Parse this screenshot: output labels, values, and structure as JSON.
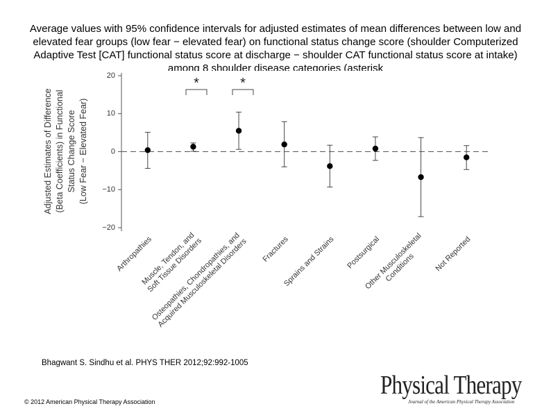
{
  "chart_data": {
    "type": "errorbar",
    "title": "Average values with 95% confidence intervals for adjusted estimates of mean differences between low and elevated fear groups (low fear − elevated fear) on functional status change score (shoulder Computerized Adaptive Test [CAT] functional status score at discharge − shoulder CAT functional status score at intake) among 8 shoulder disease categories (asterisk",
    "y_label": [
      "Adjusted Estimates of Difference",
      "(Beta Coefficients) in Functional",
      "Status Change Score",
      "(Low Fear − Elevated Fear)"
    ],
    "categories": [
      [
        "Arthropathies"
      ],
      [
        "Muscle, Tendon, and",
        "Soft Tissue Disorders"
      ],
      [
        "Osteopathies, Chondropathies, and",
        "Acquired Musculoskeletal Disorders"
      ],
      [
        "Fractures"
      ],
      [
        "Sprains and Strains"
      ],
      [
        "Postsurgical"
      ],
      [
        "Other Musculoskeletal",
        "Conditions"
      ],
      [
        "Not Reported"
      ]
    ],
    "values": [
      0.4,
      1.3,
      5.5,
      1.9,
      -3.8,
      0.8,
      -6.7,
      -1.5
    ],
    "lower": [
      -4.4,
      0.1,
      0.6,
      -4.0,
      -9.3,
      -2.3,
      -17.1,
      -4.7
    ],
    "upper": [
      5.1,
      2.3,
      10.4,
      7.9,
      1.7,
      3.9,
      3.7,
      1.6
    ],
    "annotations": [
      "*",
      "*"
    ],
    "ylim": [
      -20,
      20
    ],
    "yticks": [
      {
        "value": -20,
        "label": "−20"
      },
      {
        "value": -10,
        "label": "−10"
      },
      0,
      10,
      20
    ]
  },
  "citation": "Bhagwant S. Sindhu et al. PHYS THER 2012;92:992-1005",
  "copyright": "© 2012 American Physical Therapy Association",
  "logo": {
    "name": "Physical Therapy",
    "subtitle": "Journal of the American Physical Therapy Association"
  }
}
